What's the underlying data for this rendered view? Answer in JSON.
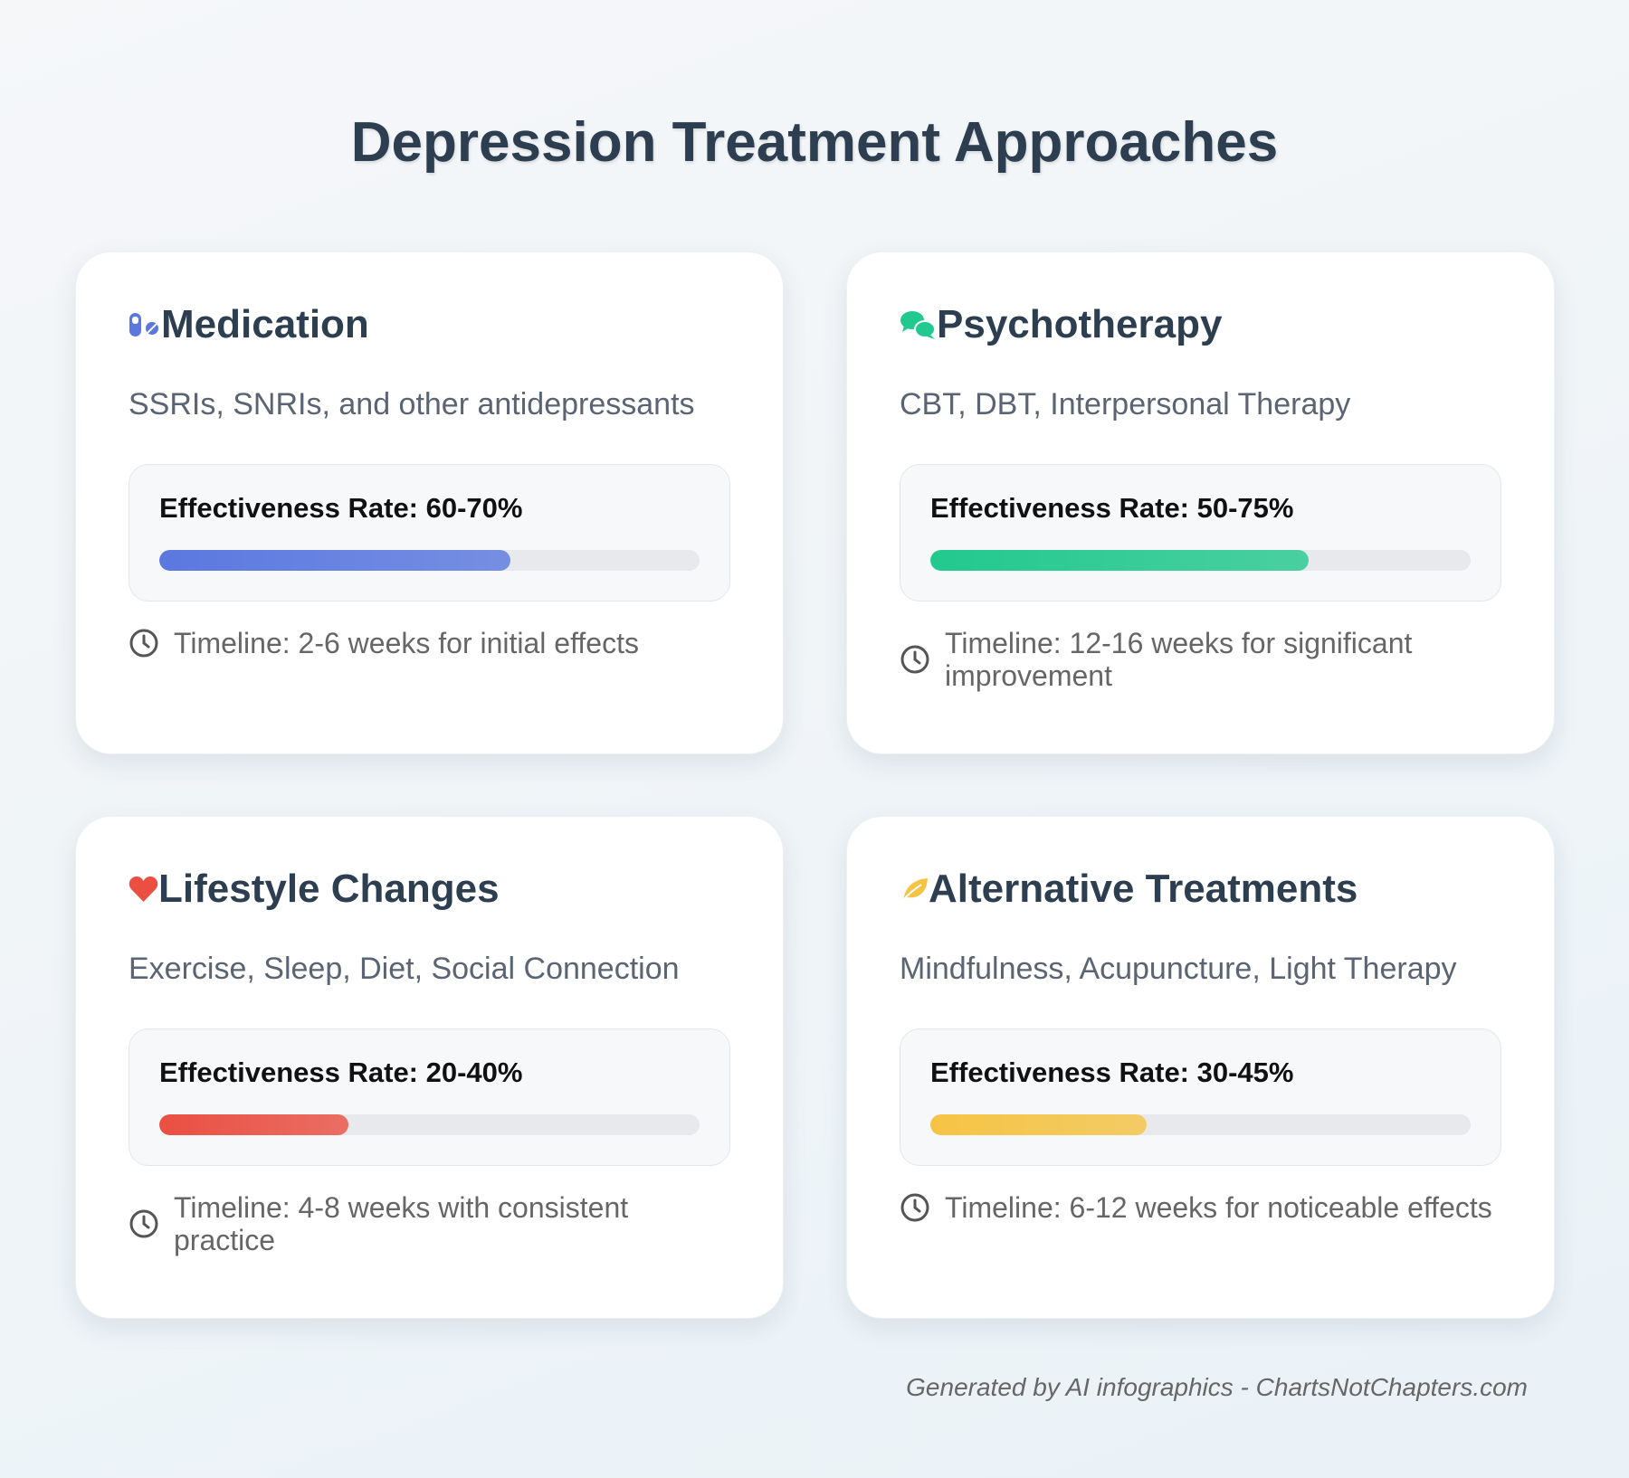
{
  "title": "Depression Treatment Approaches",
  "cards": [
    {
      "title": "Medication",
      "description": "SSRIs, SNRIs, and other antidepressants",
      "effectiveness_label": "Effectiveness Rate: 60-70%",
      "bar_percent": 65,
      "color": "#5a78e0",
      "timeline": "Timeline: 2-6 weeks for initial effects"
    },
    {
      "title": "Psychotherapy",
      "description": "CBT, DBT, Interpersonal Therapy",
      "effectiveness_label": "Effectiveness Rate: 50-75%",
      "bar_percent": 70,
      "color": "#22c98e",
      "timeline": "Timeline: 12-16 weeks for significant improvement"
    },
    {
      "title": "Lifestyle Changes",
      "description": "Exercise, Sleep, Diet, Social Connection",
      "effectiveness_label": "Effectiveness Rate: 20-40%",
      "bar_percent": 35,
      "color": "#ea4f42",
      "timeline": "Timeline: 4-8 weeks with consistent practice"
    },
    {
      "title": "Alternative Treatments",
      "description": "Mindfulness, Acupuncture, Light Therapy",
      "effectiveness_label": "Effectiveness Rate: 30-45%",
      "bar_percent": 40,
      "color": "#f6c444",
      "timeline": "Timeline: 6-12 weeks for noticeable effects"
    }
  ],
  "footer": "Generated by AI infographics - ChartsNotChapters.com"
}
